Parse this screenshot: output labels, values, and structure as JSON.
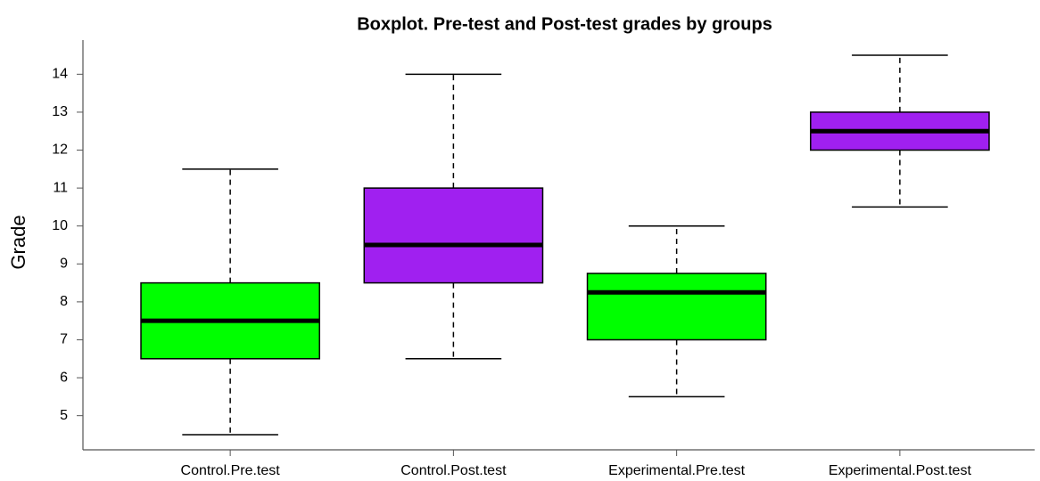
{
  "chart_data": {
    "type": "box",
    "title": "Boxplot. Pre-test and Post-test grades by groups",
    "ylabel": "Grade",
    "categories": [
      "Control.Pre.test",
      "Control.Post.test",
      "Experimental.Pre.test",
      "Experimental.Post.test"
    ],
    "colors": [
      "#00ff00",
      "#a020f0",
      "#00ff00",
      "#a020f0"
    ],
    "min": [
      4.5,
      6.5,
      5.5,
      10.5
    ],
    "q1": [
      6.5,
      8.5,
      7,
      12
    ],
    "median": [
      7.5,
      9.5,
      8.25,
      12.5
    ],
    "q3": [
      8.5,
      11,
      8.75,
      13
    ],
    "max": [
      11.5,
      14,
      10,
      14.5
    ],
    "ylim": [
      4.1,
      14.9
    ],
    "yticks": [
      5,
      6,
      7,
      8,
      9,
      10,
      11,
      12,
      13,
      14
    ]
  }
}
